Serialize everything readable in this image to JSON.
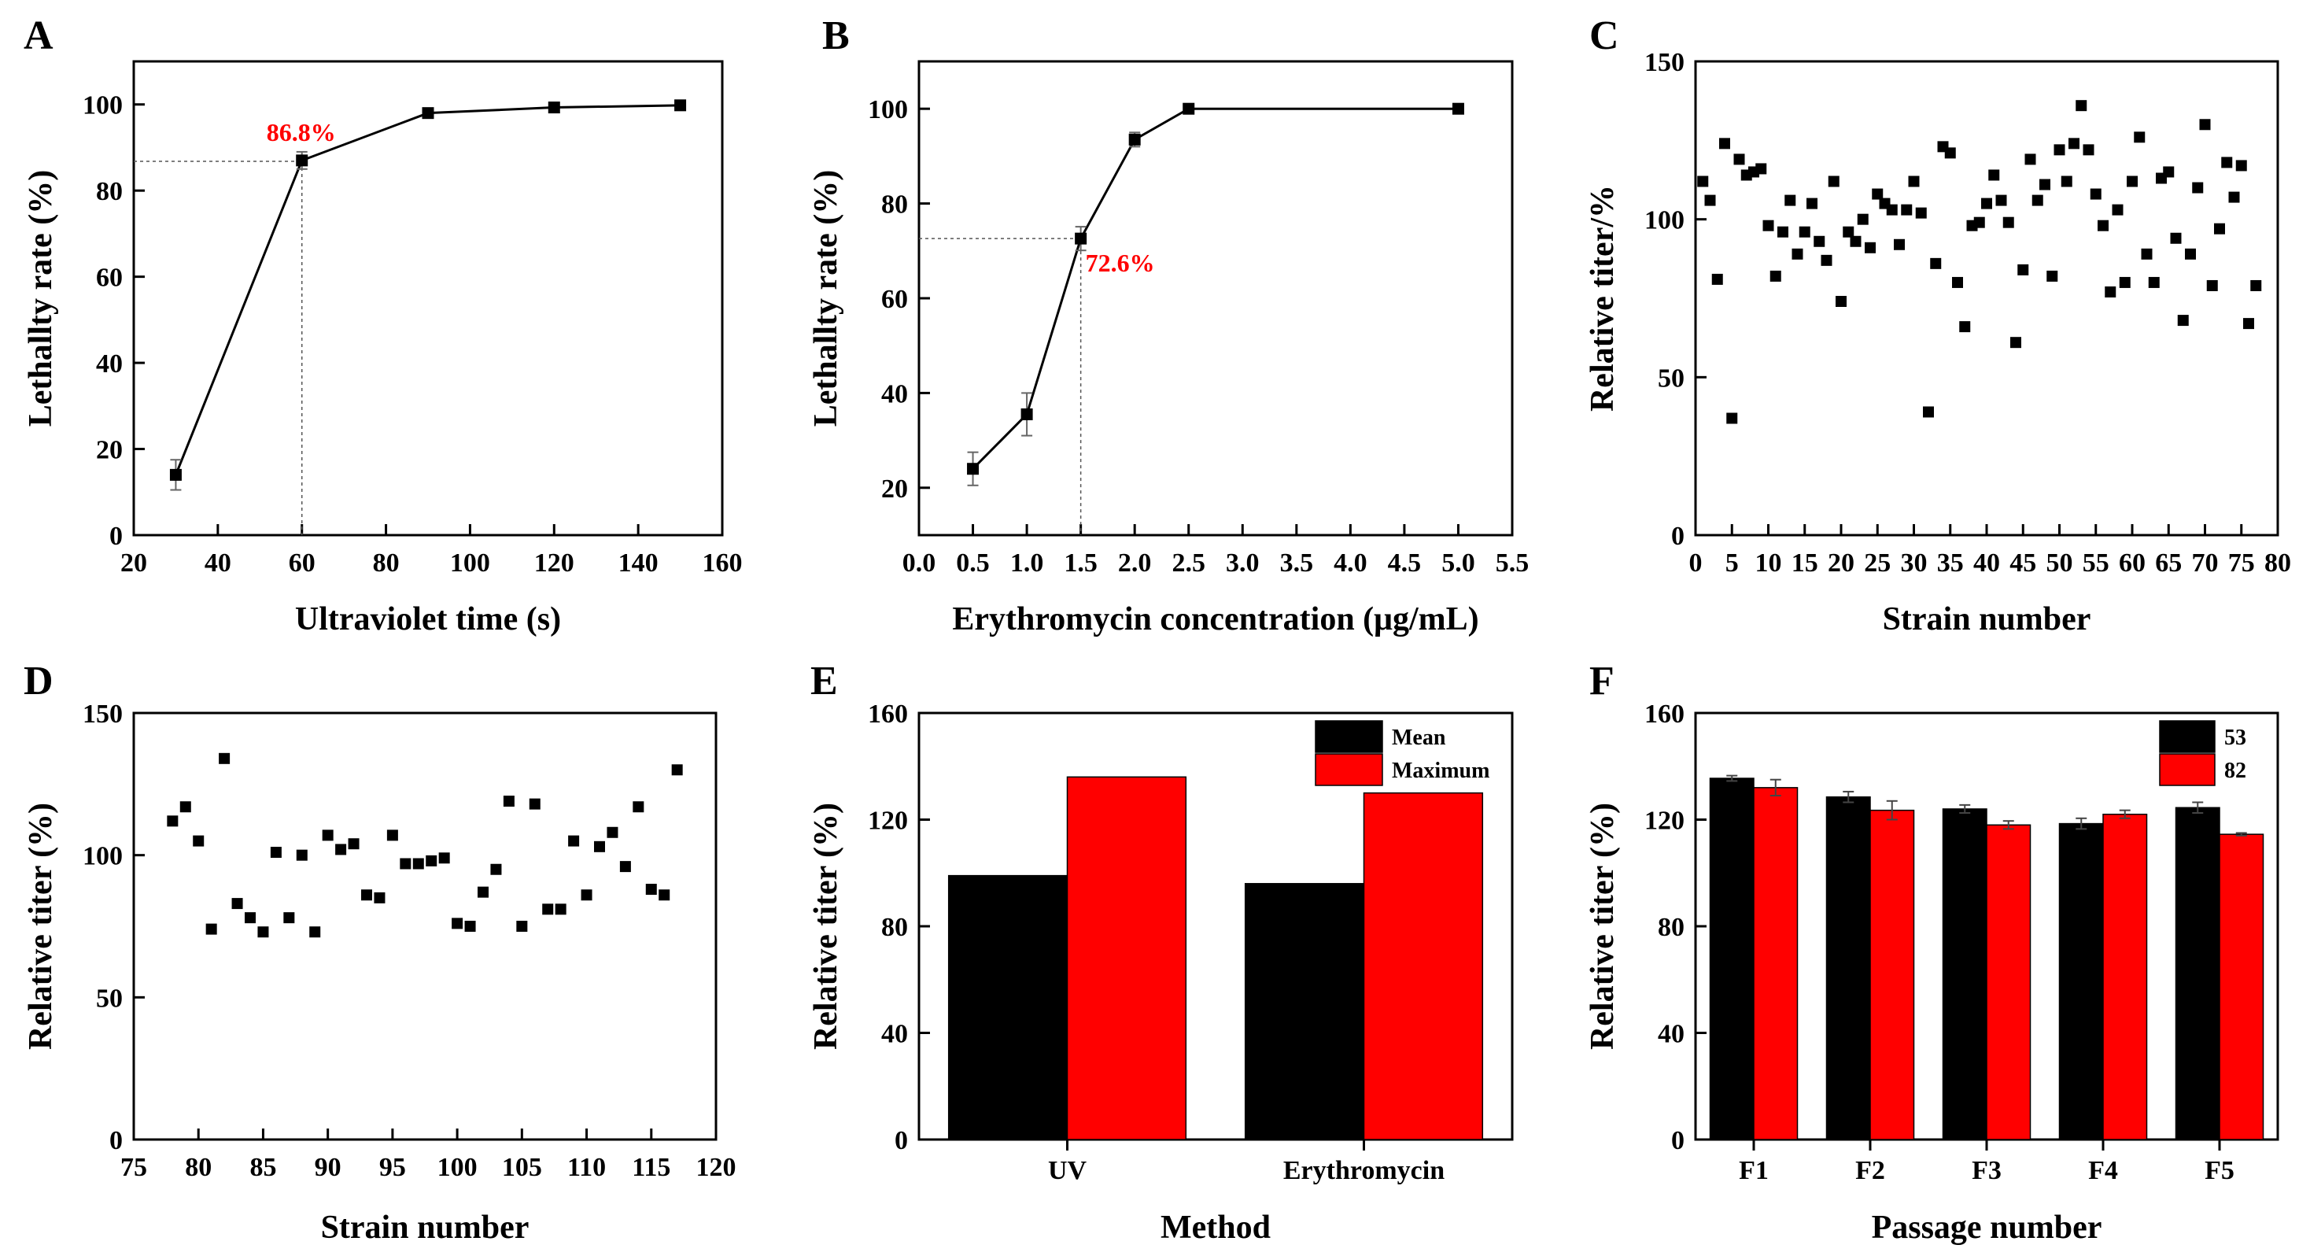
{
  "chart_data": [
    {
      "id": "A",
      "type": "line",
      "panel_label": "A",
      "xlabel": "Ultraviolet time (s)",
      "ylabel": "Lethallty rate (%)",
      "xlim": [
        20,
        160
      ],
      "ylim": [
        0,
        110
      ],
      "xticks": [
        20,
        40,
        60,
        80,
        100,
        120,
        140,
        160
      ],
      "yticks": [
        0,
        20,
        40,
        60,
        80,
        100
      ],
      "series": [
        {
          "x": [
            30,
            60,
            90,
            120,
            150
          ],
          "y": [
            14,
            87,
            98,
            99.3,
            99.8
          ],
          "err": [
            3.5,
            2,
            0.8,
            0.5,
            0.3
          ]
        }
      ],
      "annotation": {
        "text": "86.8%",
        "x": 60,
        "y": 86.8
      },
      "grid": false
    },
    {
      "id": "B",
      "type": "line",
      "panel_label": "B",
      "xlabel": "Erythromycin concentration (μg/mL)",
      "ylabel": "Lethallty rate (%)",
      "xlim": [
        0,
        5.5
      ],
      "ylim": [
        10,
        110
      ],
      "xticks": [
        "0.0",
        "0.5",
        "1.0",
        "1.5",
        "2.0",
        "2.5",
        "3.0",
        "3.5",
        "4.0",
        "4.5",
        "5.0",
        "5.5"
      ],
      "yticks": [
        20,
        40,
        60,
        80,
        100
      ],
      "series": [
        {
          "x": [
            0.5,
            1.0,
            1.5,
            2.0,
            2.5,
            5.0
          ],
          "y": [
            24,
            35.5,
            72.6,
            93.5,
            100,
            100
          ],
          "err": [
            3.5,
            4.5,
            2.5,
            1.5,
            0.5,
            0.3
          ]
        }
      ],
      "annotation": {
        "text": "72.6%",
        "x": 1.5,
        "y": 72.6
      },
      "grid": false
    },
    {
      "id": "C",
      "type": "scatter",
      "panel_label": "C",
      "xlabel": "Strain number",
      "ylabel": "Relative titer/%",
      "xlim": [
        0,
        80
      ],
      "ylim": [
        0,
        150
      ],
      "xticks": [
        0,
        5,
        10,
        15,
        20,
        25,
        30,
        35,
        40,
        45,
        50,
        55,
        60,
        65,
        70,
        75,
        80
      ],
      "yticks": [
        0,
        50,
        100,
        150
      ],
      "x": [
        1,
        2,
        3,
        4,
        5,
        6,
        7,
        8,
        9,
        10,
        11,
        12,
        13,
        14,
        15,
        16,
        17,
        18,
        19,
        20,
        21,
        22,
        23,
        24,
        25,
        26,
        27,
        28,
        29,
        30,
        31,
        32,
        33,
        34,
        35,
        36,
        37,
        38,
        39,
        40,
        41,
        42,
        43,
        44,
        45,
        46,
        47,
        48,
        49,
        50,
        51,
        52,
        53,
        54,
        55,
        56,
        57,
        58,
        59,
        60,
        61,
        62,
        63,
        64,
        65,
        66,
        67,
        68,
        69,
        70,
        71,
        72,
        73,
        74,
        75,
        76,
        77
      ],
      "y": [
        112,
        106,
        81,
        124,
        37,
        119,
        114,
        115,
        116,
        98,
        82,
        96,
        106,
        89,
        96,
        105,
        93,
        87,
        112,
        74,
        96,
        93,
        100,
        91,
        108,
        105,
        103,
        92,
        103,
        112,
        102,
        39,
        86,
        123,
        121,
        80,
        66,
        98,
        99,
        105,
        114,
        106,
        99,
        61,
        84,
        119,
        106,
        111,
        82,
        122,
        112,
        124,
        136,
        122,
        108,
        98,
        77,
        103,
        80,
        112,
        126,
        89,
        80,
        113,
        115,
        94,
        68,
        89,
        110,
        130,
        79,
        97,
        118,
        107,
        117,
        67,
        79
      ],
      "grid": false
    },
    {
      "id": "D",
      "type": "scatter",
      "panel_label": "D",
      "xlabel": "Strain number",
      "ylabel": "Relative titer (%)",
      "xlim": [
        75,
        120
      ],
      "ylim": [
        0,
        150
      ],
      "xticks": [
        75,
        80,
        85,
        90,
        95,
        100,
        105,
        110,
        115,
        120
      ],
      "yticks": [
        0,
        50,
        100,
        150
      ],
      "x": [
        78,
        79,
        80,
        81,
        82,
        83,
        84,
        85,
        86,
        87,
        88,
        89,
        90,
        91,
        92,
        93,
        94,
        95,
        96,
        97,
        98,
        99,
        100,
        101,
        102,
        103,
        104,
        105,
        106,
        107,
        108,
        109,
        110,
        111,
        112,
        113,
        114,
        115,
        116,
        117
      ],
      "y": [
        112,
        117,
        105,
        74,
        134,
        83,
        78,
        73,
        101,
        78,
        100,
        73,
        107,
        102,
        104,
        86,
        85,
        107,
        97,
        97,
        98,
        99,
        76,
        75,
        87,
        95,
        119,
        75,
        118,
        81,
        81,
        105,
        86,
        103,
        108,
        96,
        117,
        88,
        86,
        130
      ],
      "grid": false
    },
    {
      "id": "E",
      "type": "bar",
      "panel_label": "E",
      "xlabel": "Method",
      "ylabel": "Relative titer (%)",
      "categories": [
        "UV",
        "Erythromycin"
      ],
      "ylim": [
        0,
        160
      ],
      "yticks": [
        0,
        40,
        80,
        120,
        160
      ],
      "series": [
        {
          "name": "Mean",
          "color": "#000000",
          "values": [
            99,
            96
          ]
        },
        {
          "name": "Maximum",
          "color": "#ff0000",
          "values": [
            136,
            130
          ]
        }
      ],
      "legend": "top-right",
      "grid": false
    },
    {
      "id": "F",
      "type": "bar",
      "panel_label": "F",
      "xlabel": "Passage number",
      "ylabel": "Relative titer (%)",
      "categories": [
        "F1",
        "F2",
        "F3",
        "F4",
        "F5"
      ],
      "ylim": [
        0,
        160
      ],
      "yticks": [
        0,
        40,
        80,
        120,
        160
      ],
      "series": [
        {
          "name": "53",
          "color": "#000000",
          "values": [
            135.5,
            128.5,
            124,
            118.5,
            124.5
          ],
          "err": [
            1,
            2,
            1.5,
            2,
            2
          ]
        },
        {
          "name": "82",
          "color": "#ff0000",
          "values": [
            132,
            123.5,
            118,
            122,
            114.5
          ],
          "err": [
            3,
            3.5,
            1.5,
            1.5,
            0.5
          ]
        }
      ],
      "legend": "top-right",
      "grid": false
    }
  ]
}
